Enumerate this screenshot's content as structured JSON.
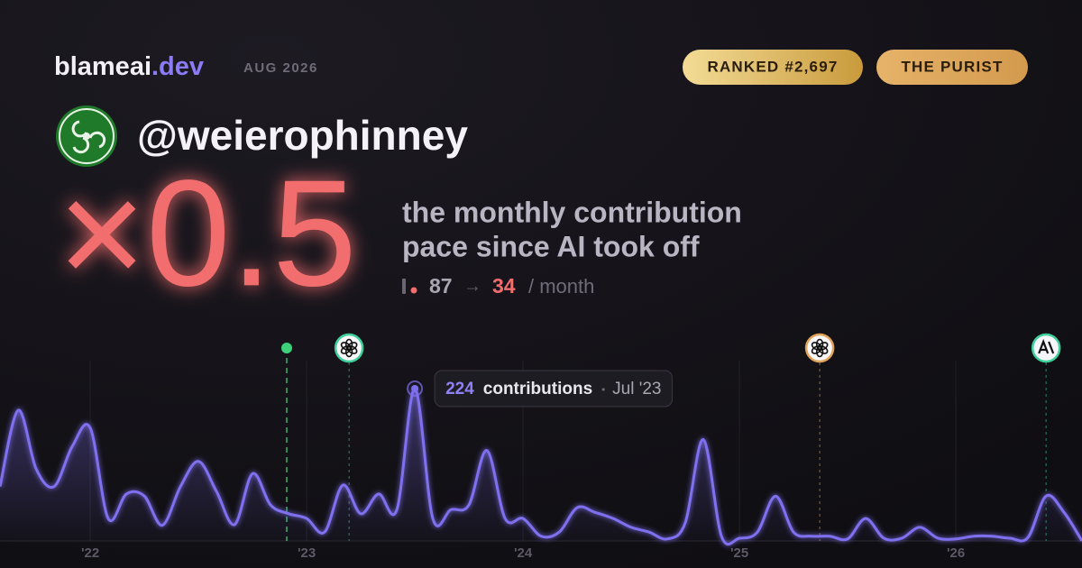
{
  "brand": {
    "name": "blameai",
    "tld": ".dev",
    "date": "AUG 2026"
  },
  "badges": [
    "RANKED #2,697",
    "THE PURIST"
  ],
  "user": {
    "handle": "@weierophinney"
  },
  "headline": {
    "multiplier": "×0.5",
    "lines": [
      "the monthly contribution",
      "pace since AI took off"
    ],
    "before": 87,
    "arrow": "→",
    "after": 34,
    "unit": "/ month"
  },
  "chart_data": {
    "type": "line",
    "x": [
      2021.583,
      2021.667,
      2021.75,
      2021.833,
      2021.917,
      2022.0,
      2022.083,
      2022.167,
      2022.25,
      2022.333,
      2022.417,
      2022.5,
      2022.583,
      2022.667,
      2022.75,
      2022.833,
      2022.917,
      2023.0,
      2023.083,
      2023.167,
      2023.25,
      2023.333,
      2023.417,
      2023.5,
      2023.583,
      2023.667,
      2023.75,
      2023.833,
      2023.917,
      2024.0,
      2024.083,
      2024.167,
      2024.25,
      2024.333,
      2024.417,
      2024.5,
      2024.583,
      2024.667,
      2024.75,
      2024.833,
      2024.917,
      2025.0,
      2025.083,
      2025.167,
      2025.25,
      2025.333,
      2025.417,
      2025.5,
      2025.583,
      2025.667,
      2025.75,
      2025.833,
      2025.917,
      2026.0,
      2026.083,
      2026.167,
      2026.25,
      2026.333,
      2026.417,
      2026.5,
      2026.583
    ],
    "series": [
      {
        "name": "contributions",
        "color": "#7f6ff0",
        "values": [
          80,
          192,
          106,
          80,
          139,
          166,
          33,
          69,
          66,
          23,
          80,
          117,
          73,
          24,
          99,
          53,
          40,
          33,
          13,
          82,
          40,
          69,
          46,
          224,
          33,
          46,
          53,
          133,
          33,
          33,
          7,
          13,
          49,
          42,
          33,
          20,
          13,
          3,
          27,
          149,
          7,
          4,
          13,
          66,
          13,
          7,
          7,
          3,
          33,
          4,
          4,
          20,
          4,
          3,
          7,
          7,
          4,
          5,
          66,
          42,
          0
        ]
      }
    ],
    "xlim": [
      2021.583,
      2026.583
    ],
    "ylim": [
      0,
      265
    ],
    "xticks": [
      {
        "value": 2022,
        "label": "'22"
      },
      {
        "value": 2023,
        "label": "'23"
      },
      {
        "value": 2024,
        "label": "'24"
      },
      {
        "value": 2025,
        "label": "'25"
      },
      {
        "value": 2026,
        "label": "'26"
      }
    ],
    "grid": true,
    "tooltip": {
      "index": 23,
      "text": "contributions",
      "date": "Jul '23"
    },
    "events": [
      {
        "x": 2022.908,
        "icon": "start"
      },
      {
        "x": 2023.196,
        "icon": "openai"
      },
      {
        "x": 2025.371,
        "icon": "openai-orange"
      },
      {
        "x": 2026.417,
        "icon": "anthropic"
      }
    ]
  }
}
